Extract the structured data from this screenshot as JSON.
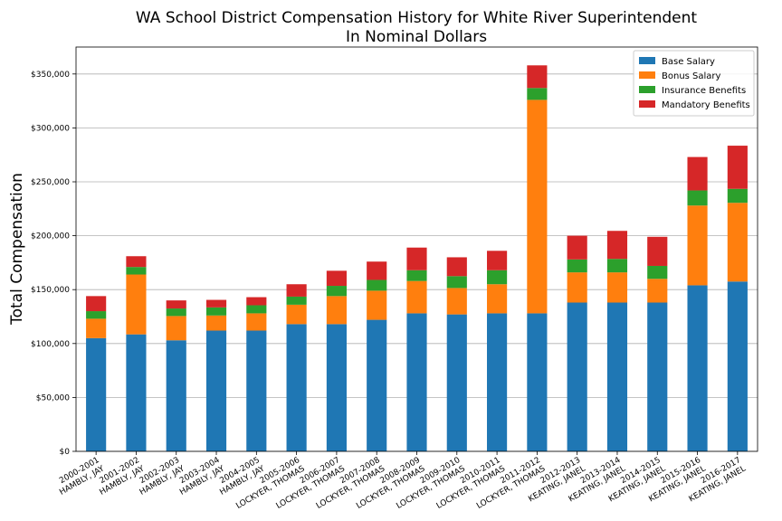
{
  "chart_data": {
    "type": "bar",
    "stacked": true,
    "title_line1": "WA School District Compensation History for White River Superintendent",
    "title_line2": "In Nominal Dollars",
    "ylabel": "Total Compensation",
    "xlabel": "",
    "ylim": [
      0,
      375000
    ],
    "yticks": [
      0,
      50000,
      100000,
      150000,
      200000,
      250000,
      300000,
      350000
    ],
    "ytick_labels": [
      "$0",
      "$50,000",
      "$100,000",
      "$150,000",
      "$200,000",
      "$250,000",
      "$300,000",
      "$350,000"
    ],
    "grid": "horizontal",
    "legend_position": "top-right",
    "categories": [
      [
        "2000-2001",
        "HAMBLY, JAY"
      ],
      [
        "2001-2002",
        "HAMBLY, JAY"
      ],
      [
        "2002-2003",
        "HAMBLY, JAY"
      ],
      [
        "2003-2004",
        "HAMBLY, JAY"
      ],
      [
        "2004-2005",
        "HAMBLY, JAY"
      ],
      [
        "2005-2006",
        "LOCKYER, THOMAS"
      ],
      [
        "2006-2007",
        "LOCKYER, THOMAS"
      ],
      [
        "2007-2008",
        "LOCKYER, THOMAS"
      ],
      [
        "2008-2009",
        "LOCKYER, THOMAS"
      ],
      [
        "2009-2010",
        "LOCKYER, THOMAS"
      ],
      [
        "2010-2011",
        "LOCKYER, THOMAS"
      ],
      [
        "2011-2012",
        "LOCKYER, THOMAS"
      ],
      [
        "2012-2013",
        "KEATING, JANEL"
      ],
      [
        "2013-2014",
        "KEATING, JANEL"
      ],
      [
        "2014-2015",
        "KEATING, JANEL"
      ],
      [
        "2015-2016",
        "KEATING, JANEL"
      ],
      [
        "2016-2017",
        "KEATING, JANEL"
      ]
    ],
    "series": [
      {
        "name": "Base Salary",
        "color": "#1f77b4",
        "values": [
          105000,
          108500,
          103000,
          112000,
          112000,
          118000,
          118000,
          122000,
          128000,
          127000,
          128000,
          128000,
          138000,
          138000,
          138000,
          154000,
          157500
        ]
      },
      {
        "name": "Bonus Salary",
        "color": "#ff7f0e",
        "values": [
          18000,
          55500,
          22500,
          14000,
          16000,
          18000,
          26000,
          27000,
          30000,
          24500,
          27000,
          198000,
          28000,
          28000,
          22000,
          74000,
          73000
        ]
      },
      {
        "name": "Insurance Benefits",
        "color": "#2ca02c",
        "values": [
          7000,
          7000,
          7000,
          7500,
          7500,
          7500,
          9500,
          10000,
          10000,
          11000,
          13000,
          11000,
          12000,
          12500,
          12000,
          14000,
          13000
        ]
      },
      {
        "name": "Mandatory Benefits",
        "color": "#d62728",
        "values": [
          14000,
          10000,
          7500,
          7000,
          7500,
          11500,
          14000,
          17000,
          21000,
          17500,
          18000,
          21000,
          22000,
          26000,
          27000,
          31000,
          40000
        ]
      }
    ]
  }
}
